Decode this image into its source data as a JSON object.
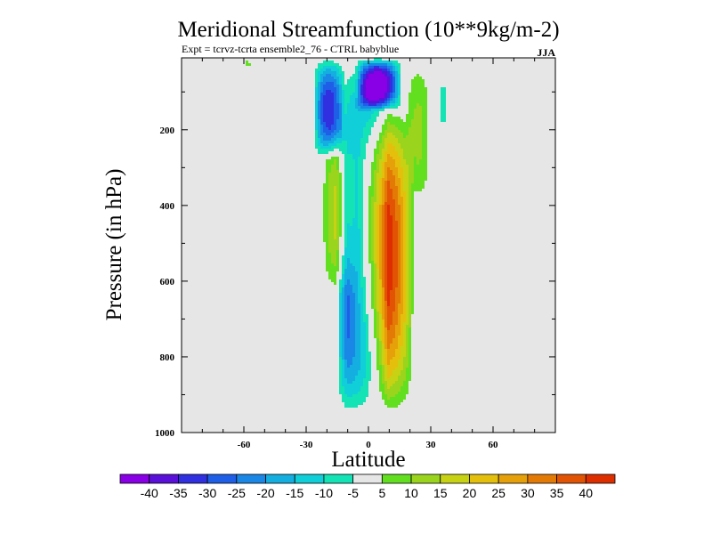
{
  "chart_data": {
    "type": "heatmap",
    "title": "Meridional Streamfunction (10**9kg/m-2)",
    "subtitle": "Expt = tcrvz-tcrta  ensemble2_76 - CTRL babyblue",
    "season": "JJA",
    "xlabel": "Latitude",
    "ylabel": "Pressure (in hPa)",
    "xlim": [
      -90,
      90
    ],
    "ylim": [
      1000,
      10
    ],
    "y_inverted": true,
    "x_ticks": [
      -60,
      -30,
      0,
      30,
      60
    ],
    "x_tick_labels": [
      "-60",
      "-30",
      "0",
      "30",
      "60"
    ],
    "y_ticks": [
      200,
      400,
      600,
      800,
      1000
    ],
    "y_tick_labels": [
      "200",
      "400",
      "600",
      "800",
      "1000"
    ],
    "background_color": "#e6e6e6",
    "colorbar": {
      "levels": [
        -40,
        -35,
        -30,
        -25,
        -20,
        -15,
        -10,
        -5,
        5,
        10,
        15,
        20,
        25,
        30,
        35,
        40
      ],
      "labels": [
        "-40",
        "-35",
        "-30",
        "-25",
        "-20",
        "-15",
        "-10",
        "-5",
        "5",
        "10",
        "15",
        "20",
        "25",
        "30",
        "35",
        "40"
      ],
      "colors": [
        "#8a00e6",
        "#5a10d8",
        "#3030e0",
        "#1f5fe8",
        "#1a86e6",
        "#14aee0",
        "#10cfd8",
        "#14e3b5",
        "#e6e6e6",
        "#62e020",
        "#9ad41c",
        "#c8d214",
        "#e4c00c",
        "#e6a00a",
        "#e47a06",
        "#e25404",
        "#de2e00"
      ]
    },
    "features": [
      {
        "kind": "cell",
        "sign": "positive",
        "lat_center": 8,
        "lat_halfwidth": 13,
        "p_top": 140,
        "p_bottom": 960,
        "peak": 40,
        "lat_peak": 6,
        "p_peak": 520
      },
      {
        "kind": "cell",
        "sign": "negative",
        "lat_center": -3,
        "lat_halfwidth": 10,
        "p_top": 10,
        "p_bottom": 960,
        "peak": -35,
        "lat_peak": -3,
        "p_peak": 680
      },
      {
        "kind": "cell",
        "sign": "negative",
        "lat_center": 5,
        "lat_halfwidth": 9,
        "p_top": 10,
        "p_bottom": 150,
        "peak": -40
      },
      {
        "kind": "cell",
        "sign": "negative",
        "lat_center": -19,
        "lat_halfwidth": 6,
        "p_top": 10,
        "p_bottom": 280,
        "peak": -30
      },
      {
        "kind": "cell",
        "sign": "positive",
        "lat_center": -14,
        "lat_halfwidth": 7,
        "p_top": 200,
        "p_bottom": 640,
        "peak": 15
      },
      {
        "kind": "cell",
        "sign": "positive",
        "lat_center": 24,
        "lat_halfwidth": 5,
        "p_top": 10,
        "p_bottom": 410,
        "peak": 10
      },
      {
        "kind": "cell",
        "sign": "negative",
        "lat_center": 36,
        "lat_halfwidth": 4,
        "p_top": 10,
        "p_bottom": 260,
        "peak": -5
      },
      {
        "kind": "cell",
        "sign": "positive",
        "lat_center": -58,
        "lat_halfwidth": 2,
        "p_top": 10,
        "p_bottom": 40,
        "peak": 5
      }
    ]
  }
}
